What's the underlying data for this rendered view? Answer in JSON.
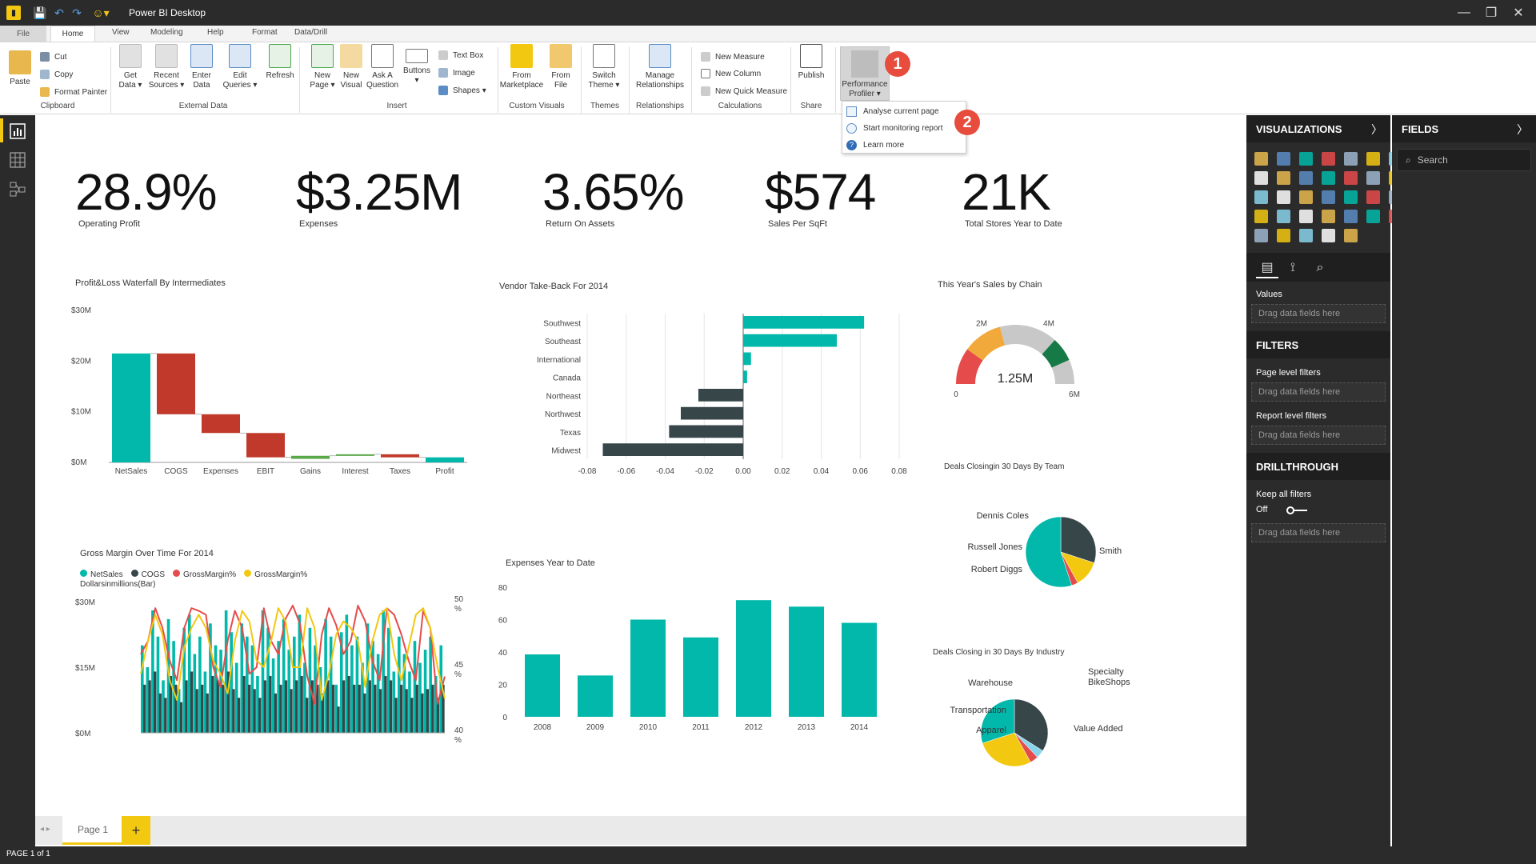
{
  "window": {
    "title": "Power BI Desktop"
  },
  "menu": {
    "tabs": [
      "File",
      "Home",
      "View",
      "Modeling",
      "Help",
      "Format",
      "Data/Drill"
    ]
  },
  "ribbon": {
    "clipboard": {
      "paste": "Paste",
      "cut": "Cut",
      "copy": "Copy",
      "format_painter": "Format Painter",
      "group": "Clipboard"
    },
    "external_data": {
      "get_data": "Get\nData ▾",
      "recent_sources": "Recent\nSources ▾",
      "enter_data": "Enter\nData",
      "edit_queries": "Edit\nQueries ▾",
      "refresh": "Refresh",
      "group": "External Data"
    },
    "insert": {
      "new_page": "New\nPage ▾",
      "new_visual": "New\nVisual",
      "ask_question": "Ask A\nQuestion",
      "buttons": "Buttons\n▾",
      "text_box": "Text Box",
      "image": "Image",
      "shapes": "Shapes ▾",
      "group": "Insert"
    },
    "custom_visuals": {
      "from_marketplace": "From\nMarketplace",
      "from_file": "From\nFile",
      "group": "Custom Visuals"
    },
    "themes": {
      "switch_theme": "Switch\nTheme ▾",
      "group": "Themes"
    },
    "relationships": {
      "manage": "Manage\nRelationships",
      "group": "Relationships"
    },
    "calculations": {
      "new_measure": "New Measure",
      "new_column": "New Column",
      "new_quick_measure": "New Quick Measure",
      "group": "Calculations"
    },
    "share": {
      "publish": "Publish",
      "group": "Share"
    },
    "performance": {
      "label": "Performance\nProfiler ▾"
    }
  },
  "callouts": [
    "1",
    "2"
  ],
  "perf_menu": {
    "items": [
      "Analyse current page",
      "Start monitoring report",
      "Learn more"
    ]
  },
  "kpis": [
    {
      "value": "28.9%",
      "label": "Operating Profit"
    },
    {
      "value": "$3.25M",
      "label": "Expenses"
    },
    {
      "value": "3.65%",
      "label": "Return On Assets"
    },
    {
      "value": "$574",
      "label": "Sales Per SqFt"
    },
    {
      "value": "21K",
      "label": "Total Stores Year to Date"
    }
  ],
  "chart_data": [
    {
      "type": "bar",
      "subtype": "waterfall",
      "title": "Profit&Loss Waterfall By Intermediates",
      "categories": [
        "NetSales",
        "COGS",
        "Expenses",
        "EBIT",
        "Gains",
        "Interest",
        "Taxes",
        "Profit"
      ],
      "start": [
        0,
        21.5,
        9.5,
        5.8,
        0.7,
        1.3,
        1.6,
        0
      ],
      "end": [
        21.5,
        9.5,
        5.8,
        1.0,
        1.3,
        1.6,
        1.0,
        1.0
      ],
      "colors": [
        "#01b8aa",
        "#c0392b",
        "#c0392b",
        "#c0392b",
        "#5ba84a",
        "#5ba84a",
        "#c0392b",
        "#01b8aa"
      ],
      "y_ticks": [
        "$0M",
        "$10M",
        "$20M",
        "$30M"
      ],
      "ylim": [
        0,
        30
      ]
    },
    {
      "type": "bar",
      "orientation": "horizontal",
      "title": "Vendor Take-Back For 2014",
      "categories": [
        "Southwest",
        "Southeast",
        "International",
        "Canada",
        "Northeast",
        "Northwest",
        "Texas",
        "Midwest"
      ],
      "values": [
        0.062,
        0.048,
        0.004,
        0.002,
        -0.023,
        -0.032,
        -0.038,
        -0.072
      ],
      "x_ticks": [
        "-0.08",
        "-0.06",
        "-0.04",
        "-0.02",
        "0.00",
        "0.02",
        "0.04",
        "0.06",
        "0.08"
      ],
      "xlim": [
        -0.08,
        0.08
      ],
      "colors": {
        "positive": "#01b8aa",
        "negative": "#374649"
      }
    },
    {
      "type": "gauge",
      "title": "This Year's Sales by Chain",
      "value": 1.25,
      "value_label": "1.25M",
      "min_label": "0",
      "max_label": "6M",
      "tick_labels": [
        "2M",
        "4M"
      ],
      "min": 0,
      "max": 6,
      "bands": [
        {
          "from": 0,
          "to": 1.2,
          "color": "#e64b4b"
        },
        {
          "from": 1.2,
          "to": 2.5,
          "color": "#f2a93b"
        },
        {
          "from": 2.5,
          "to": 4.4,
          "color": "#c8c8c8"
        },
        {
          "from": 4.4,
          "to": 5.2,
          "color": "#157a46"
        },
        {
          "from": 5.2,
          "to": 6,
          "color": "#c8c8c8"
        }
      ]
    },
    {
      "type": "bar+line",
      "title": "Gross Margin Over Time For 2014",
      "legend": [
        "NetSales",
        "COGS",
        "GrossMargin%",
        "GrossMargin%"
      ],
      "legend_colors": [
        "#01b8aa",
        "#374649",
        "#e64b4b",
        "#f2c811"
      ],
      "ylabel": "Dollarsinmillions(Bar)",
      "y_ticks": [
        "$0M",
        "$15M",
        "$30M"
      ],
      "y2_ticks": [
        "40\n%",
        "45\n%",
        "50\n%"
      ],
      "netsales": [
        20,
        15,
        28,
        22,
        12,
        26,
        21,
        10,
        24,
        27,
        18,
        22,
        14,
        25,
        20,
        19,
        28,
        23,
        16,
        25,
        22,
        20,
        13,
        28,
        24,
        17,
        21,
        26,
        19,
        22,
        27,
        16,
        24,
        20,
        15,
        26,
        22,
        11,
        23,
        27,
        20,
        22,
        16,
        25,
        21,
        18,
        28,
        24,
        14,
        22,
        18,
        14,
        21,
        16,
        19,
        22,
        13,
        20
      ],
      "cogs": [
        11,
        12,
        14,
        9,
        8,
        13,
        11,
        7,
        12,
        14,
        10,
        11,
        9,
        13,
        12,
        11,
        14,
        10,
        8,
        13,
        11,
        10,
        8,
        12,
        13,
        9,
        11,
        12,
        10,
        12,
        13,
        8,
        12,
        11,
        9,
        12,
        11,
        6,
        12,
        13,
        11,
        11,
        9,
        12,
        11,
        10,
        13,
        12,
        8,
        11,
        10,
        8,
        11,
        9,
        10,
        11,
        8,
        11
      ],
      "margin_red": [
        46,
        47,
        49.5,
        48,
        45.5,
        44,
        48,
        49.5,
        49.3,
        49,
        45,
        43.5,
        47,
        49.3,
        48,
        44.5,
        45,
        49.5,
        47,
        46,
        48.7,
        49.7,
        48.3,
        44.3,
        42.2,
        47.5,
        49.5,
        48.2,
        46,
        47,
        49.7,
        48.5,
        45.5,
        44,
        49.5,
        49,
        47.5,
        45.5,
        44,
        49.3,
        48,
        42.2,
        44.3
      ],
      "margin_yellow": [
        44.5,
        47,
        49,
        47.5,
        44,
        42.5,
        46.5,
        48,
        49,
        48,
        45.5,
        44.5,
        43,
        47,
        49.3,
        48.5,
        45.5,
        45,
        47,
        49.5,
        48.5,
        45,
        45,
        49.5,
        48,
        42.5,
        44.5,
        47.5,
        48.5,
        48,
        47,
        43.5,
        47,
        49,
        49.5,
        46,
        44,
        46.5,
        49,
        49.5,
        48,
        45,
        42.6
      ]
    },
    {
      "type": "bar",
      "title": "Expenses Year to Date",
      "categories": [
        "2008",
        "2009",
        "2010",
        "2011",
        "2012",
        "2013",
        "2014"
      ],
      "values": [
        38.5,
        25.5,
        60,
        49,
        72,
        68,
        58
      ],
      "y_ticks": [
        "0",
        "20",
        "40",
        "60",
        "80"
      ],
      "ylim": [
        0,
        80
      ],
      "color": "#01b8aa"
    },
    {
      "type": "pie",
      "title": "Deals Closingin 30 Days By Team",
      "labels": [
        "Dennis Coles",
        "Russell Jones",
        "Robert Diggs",
        "Smith"
      ],
      "values": [
        30,
        12,
        3,
        55
      ],
      "colors": [
        "#374649",
        "#f2c811",
        "#e64b4b",
        "#01b8aa"
      ]
    },
    {
      "type": "pie",
      "title": "Deals Closing in 30 Days By Industry",
      "labels": [
        "Warehouse",
        "Transportation",
        "Apparel",
        "Value Added",
        "Specialty BikeShops"
      ],
      "values": [
        34,
        4,
        4,
        28,
        30
      ],
      "colors": [
        "#374649",
        "#8ad4eb",
        "#e64b4b",
        "#f2c811",
        "#01b8aa"
      ]
    }
  ],
  "pages": {
    "current": "Page 1",
    "add": "+",
    "status": "PAGE 1 of 1"
  },
  "visualizations_pane": {
    "title": "VISUALIZATIONS",
    "values_label": "Values",
    "drop_hint": "Drag data fields here"
  },
  "filters_pane": {
    "title": "FILTERS",
    "page_level": "Page level filters",
    "report_level": "Report level filters",
    "drop_hint": "Drag data fields here"
  },
  "drillthrough": {
    "title": "DRILLTHROUGH",
    "keep_all_filters": "Keep all filters",
    "toggle": "Off",
    "drop_hint": "Drag data fields here"
  },
  "fields_pane": {
    "title": "FIELDS",
    "search_placeholder": "Search"
  }
}
